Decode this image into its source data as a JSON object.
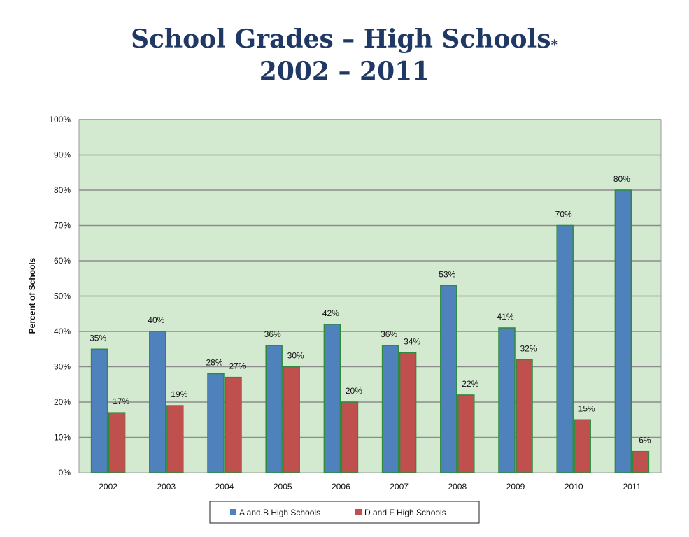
{
  "chart_data": {
    "type": "bar",
    "title": "School Grades – High Schools",
    "title_marker": "*",
    "subtitle": "2002 – 2011",
    "xlabel": "",
    "ylabel": "Percent of Schools",
    "ylim": [
      0,
      100
    ],
    "yticks": [
      "0%",
      "10%",
      "20%",
      "30%",
      "40%",
      "50%",
      "60%",
      "70%",
      "80%",
      "90%",
      "100%"
    ],
    "grid": true,
    "legend_position": "bottom",
    "categories": [
      "2002",
      "2003",
      "2004",
      "2005",
      "2006",
      "2007",
      "2008",
      "2009",
      "2010",
      "2011"
    ],
    "series": [
      {
        "name": "A and B High Schools",
        "color": "#4f81bd",
        "values": [
          35,
          40,
          28,
          36,
          42,
          36,
          53,
          41,
          70,
          80
        ],
        "labels": [
          "35%",
          "40%",
          "28%",
          "36%",
          "42%",
          "36%",
          "53%",
          "41%",
          "70%",
          "80%"
        ]
      },
      {
        "name": "D and F High Schools",
        "color": "#c0504d",
        "values": [
          17,
          19,
          27,
          30,
          20,
          34,
          22,
          32,
          15,
          6
        ],
        "labels": [
          "17%",
          "19%",
          "27%",
          "30%",
          "20%",
          "34%",
          "22%",
          "32%",
          "15%",
          "6%"
        ]
      }
    ],
    "colors": {
      "plot_background": "#d3e9d0",
      "bar_border": "#2e8b3e",
      "title": "#1f3864"
    }
  }
}
